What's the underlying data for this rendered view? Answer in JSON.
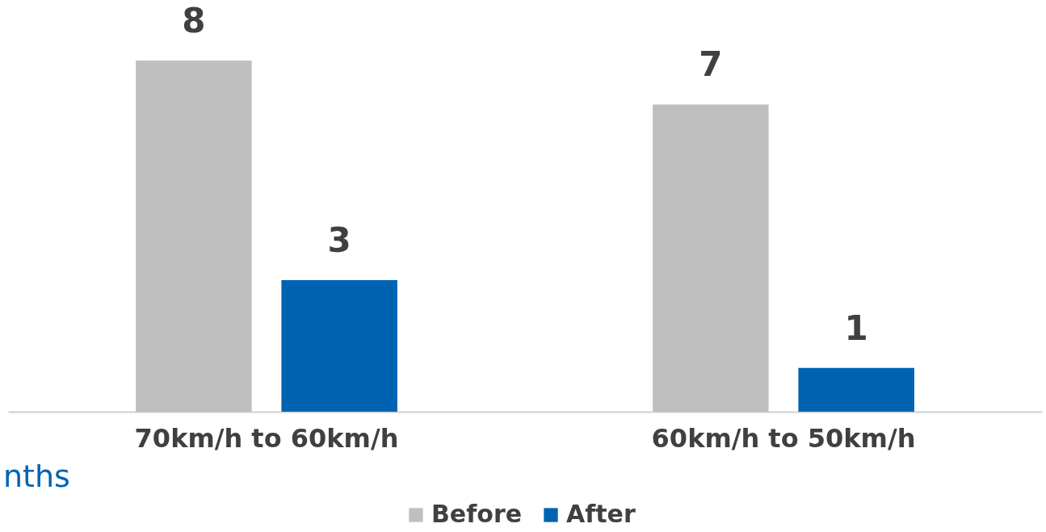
{
  "chart_data": {
    "type": "bar",
    "categories": [
      "70km/h to 60km/h",
      "60km/h to 50km/h"
    ],
    "series": [
      {
        "name": "Before",
        "color": "#bfbfbf",
        "values": [
          8,
          7
        ]
      },
      {
        "name": "After",
        "color": "#0063b2",
        "values": [
          3,
          1
        ]
      }
    ],
    "data_labels": true,
    "legend": "bottom",
    "grid": false,
    "annotations": [
      "nths"
    ]
  }
}
